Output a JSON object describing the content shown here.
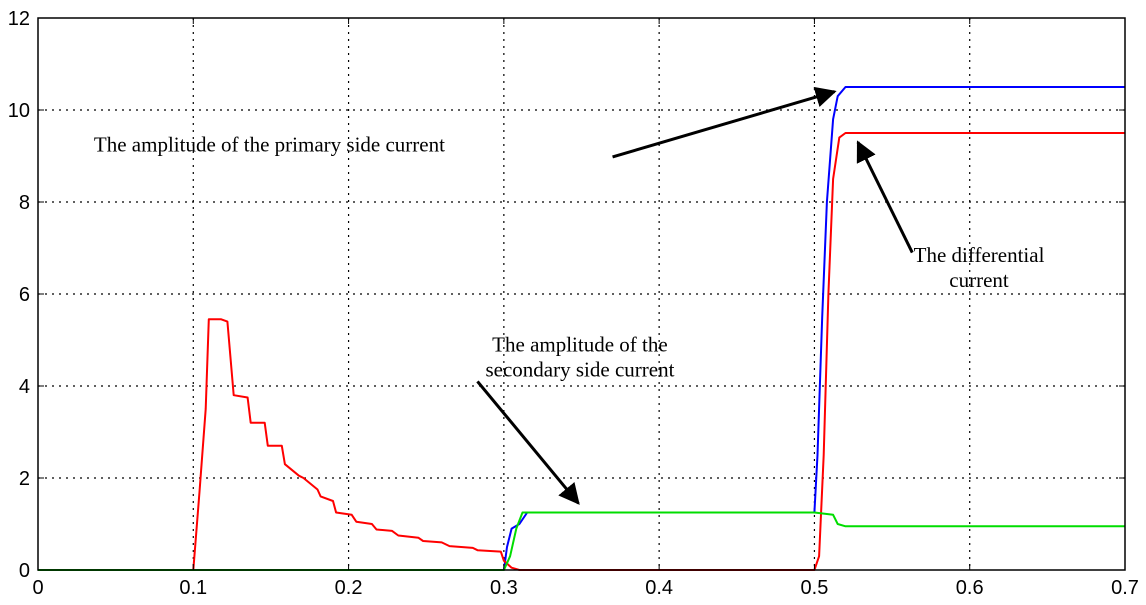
{
  "chart_data": {
    "type": "line",
    "title": "",
    "xlabel": "",
    "ylabel": "",
    "xlim": [
      0,
      0.7
    ],
    "ylim": [
      0,
      12
    ],
    "grid": true,
    "x_ticks": [
      "0",
      "0.1",
      "0.2",
      "0.3",
      "0.4",
      "0.5",
      "0.6",
      "0.7"
    ],
    "y_ticks": [
      "0",
      "2",
      "4",
      "6",
      "8",
      "10",
      "12"
    ],
    "series": [
      {
        "color": "#0000ff",
        "x": [
          0,
          0.1,
          0.3,
          0.302,
          0.305,
          0.31,
          0.315,
          0.5,
          0.502,
          0.505,
          0.508,
          0.512,
          0.515,
          0.52,
          0.7
        ],
        "y": [
          0,
          0,
          0,
          0.5,
          0.9,
          1.0,
          1.25,
          1.25,
          2.5,
          5.5,
          8.0,
          9.8,
          10.3,
          10.5,
          10.5
        ]
      },
      {
        "color": "#ff0000",
        "x": [
          0,
          0.1,
          0.104,
          0.108,
          0.11,
          0.118,
          0.122,
          0.126,
          0.135,
          0.137,
          0.146,
          0.148,
          0.157,
          0.159,
          0.168,
          0.171,
          0.18,
          0.182,
          0.19,
          0.192,
          0.202,
          0.205,
          0.215,
          0.218,
          0.228,
          0.232,
          0.245,
          0.248,
          0.26,
          0.265,
          0.28,
          0.283,
          0.298,
          0.3,
          0.305,
          0.31,
          0.5,
          0.503,
          0.506,
          0.509,
          0.512,
          0.516,
          0.52,
          0.7
        ],
        "y": [
          0,
          0,
          1.7,
          3.5,
          5.45,
          5.45,
          5.4,
          3.8,
          3.75,
          3.2,
          3.2,
          2.7,
          2.7,
          2.3,
          2.05,
          2.0,
          1.75,
          1.6,
          1.5,
          1.25,
          1.2,
          1.05,
          1.0,
          0.88,
          0.85,
          0.75,
          0.7,
          0.63,
          0.6,
          0.52,
          0.48,
          0.43,
          0.4,
          0.2,
          0.05,
          0,
          0,
          0.3,
          2.5,
          6.0,
          8.5,
          9.4,
          9.5,
          9.5
        ]
      },
      {
        "color": "#00dd00",
        "x": [
          0,
          0.3,
          0.304,
          0.308,
          0.312,
          0.5,
          0.512,
          0.515,
          0.52,
          0.7
        ],
        "y": [
          0,
          0,
          0.3,
          0.9,
          1.25,
          1.25,
          1.2,
          1.0,
          0.95,
          0.95
        ]
      }
    ],
    "annotations": [
      {
        "lines": [
          "The amplitude of the primary side current"
        ],
        "anchor": "start",
        "text_at": [
          0.036,
          9.1
        ],
        "arrow_from": [
          0.37,
          8.98
        ],
        "arrow_to": [
          0.513,
          10.4
        ]
      },
      {
        "lines": [
          "The differential",
          "current"
        ],
        "anchor": "middle",
        "text_at": [
          0.606,
          6.7
        ],
        "arrow_from": [
          0.563,
          6.9
        ],
        "arrow_to": [
          0.528,
          9.3
        ]
      },
      {
        "lines": [
          "The amplitude of the",
          "secondary side current"
        ],
        "anchor": "middle",
        "text_at": [
          0.349,
          4.75
        ],
        "arrow_from": [
          0.283,
          4.1
        ],
        "arrow_to": [
          0.348,
          1.45
        ]
      }
    ]
  }
}
